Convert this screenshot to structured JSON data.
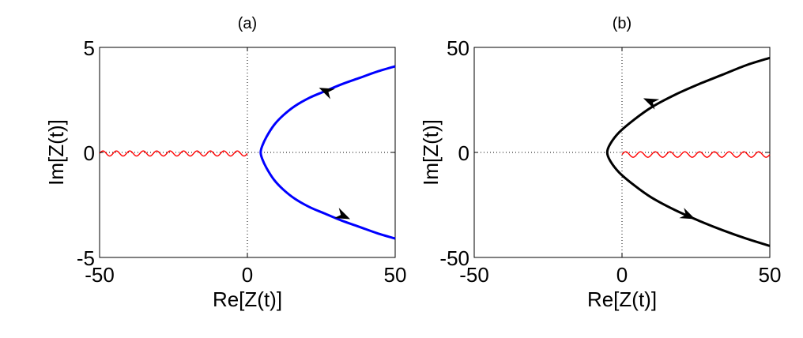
{
  "chart_data": [
    {
      "type": "line",
      "title": "(a)",
      "xlabel": "Re[Z(t)]",
      "ylabel": "Im[Z(t)]",
      "xlim": [
        -50,
        50
      ],
      "ylim": [
        -5,
        5
      ],
      "xticks": [
        "-50",
        "0",
        "50"
      ],
      "yticks": [
        "-5",
        "0",
        "5"
      ],
      "grid": "zero-lines dotted",
      "series": [
        {
          "color": "#0000ff",
          "style": "solid",
          "arrows": [
            {
              "x": 27,
              "y": 2.9,
              "direction": "up-left"
            },
            {
              "x": 32,
              "y": -3.0,
              "direction": "down-right"
            }
          ],
          "x": [
            50,
            44,
            38,
            32,
            26,
            21,
            16,
            12,
            9,
            6.5,
            5,
            4.5,
            5,
            6.5,
            9,
            12,
            16,
            21,
            26,
            32,
            38,
            44,
            50
          ],
          "y": [
            4.1,
            3.85,
            3.55,
            3.25,
            2.9,
            2.6,
            2.2,
            1.75,
            1.3,
            0.75,
            0.3,
            0,
            -0.3,
            -0.75,
            -1.3,
            -1.75,
            -2.2,
            -2.6,
            -2.9,
            -3.25,
            -3.55,
            -3.85,
            -4.1
          ]
        },
        {
          "color": "#ff0000",
          "style": "wavy",
          "x_range": [
            -50,
            0
          ],
          "y_center": -0.05,
          "amplitude": 0.12,
          "cycles": 11
        }
      ]
    },
    {
      "type": "line",
      "title": "(b)",
      "xlabel": "Re[Z(t)]",
      "ylabel": "Im[Z(t)]",
      "xlim": [
        -50,
        50
      ],
      "ylim": [
        -50,
        50
      ],
      "xticks": [
        "-50",
        "0",
        "50"
      ],
      "yticks": [
        "-50",
        "0",
        "50"
      ],
      "grid": "zero-lines dotted",
      "series": [
        {
          "color": "#000000",
          "style": "solid",
          "arrows": [
            {
              "x": 10,
              "y": 24,
              "direction": "up-left"
            },
            {
              "x": 22,
              "y": -30,
              "direction": "down-right"
            }
          ],
          "x": [
            50,
            42,
            34,
            26,
            18,
            10,
            4,
            -1,
            -4,
            -5,
            -4,
            -1,
            4,
            10,
            18,
            26,
            34,
            42,
            50
          ],
          "y": [
            45,
            41.5,
            37,
            32.5,
            27.5,
            21.5,
            15.5,
            9.5,
            4,
            0,
            -4,
            -9.5,
            -15.5,
            -21.5,
            -27.5,
            -32.5,
            -37,
            -41,
            -44.5
          ]
        },
        {
          "color": "#ff0000",
          "style": "wavy",
          "x_range": [
            0,
            50
          ],
          "y_center": -1,
          "amplitude": 1.3,
          "cycles": 10
        }
      ]
    }
  ]
}
